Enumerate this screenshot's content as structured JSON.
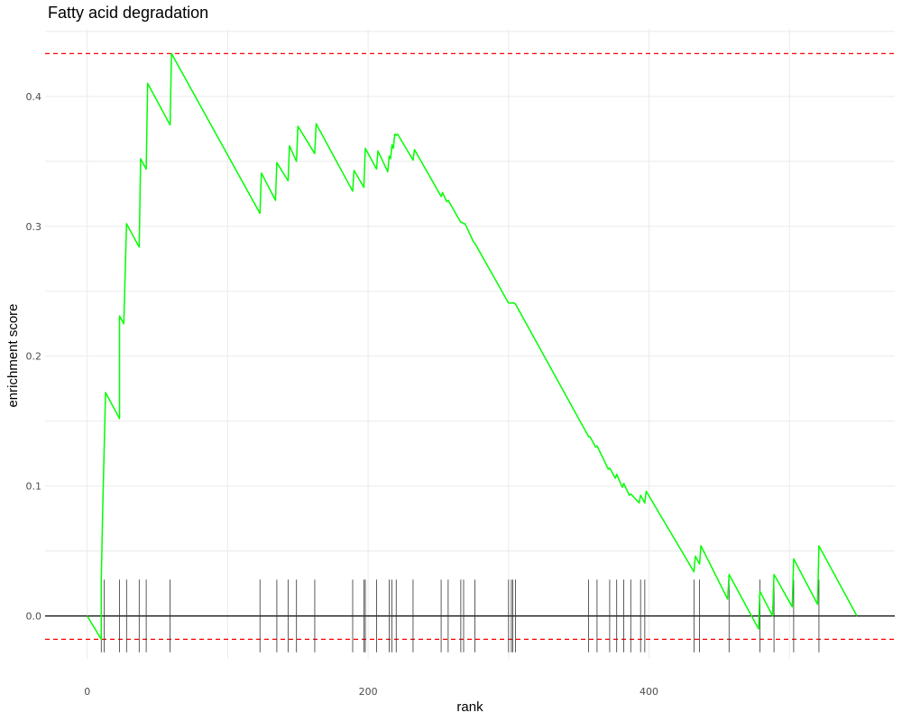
{
  "chart_data": {
    "type": "line",
    "title": "Fatty acid degradation",
    "xlabel": "rank",
    "ylabel": "enrichment score",
    "xlim": [
      -30,
      575
    ],
    "ylim": [
      -0.033,
      0.452
    ],
    "x_ticks": [
      0,
      200,
      400
    ],
    "y_ticks": [
      0.0,
      0.1,
      0.2,
      0.3,
      0.4
    ],
    "grid": true,
    "colors": {
      "line": "#00ff00",
      "threshold": "#ff0000",
      "hits": "#333333"
    },
    "max_es": 0.433,
    "min_es": -0.018,
    "series": [
      {
        "x": [
          0,
          10,
          10,
          11,
          11,
          13,
          23,
          23,
          26,
          28,
          37,
          38,
          42,
          43,
          59,
          60,
          123,
          124,
          134,
          135,
          143,
          144,
          149,
          150,
          162,
          163,
          189,
          190,
          197,
          198,
          206,
          207,
          214,
          215,
          216,
          217,
          218,
          219,
          220,
          221,
          232,
          233,
          252,
          253,
          256,
          257,
          266,
          267,
          268,
          269,
          275,
          276,
          300,
          301,
          302,
          303,
          304,
          305,
          357,
          358,
          362,
          363,
          371,
          372,
          376,
          377,
          381,
          382,
          386,
          387,
          393,
          394,
          397,
          398,
          432,
          433,
          436,
          437,
          456,
          457,
          478,
          479,
          488,
          489,
          502,
          503,
          520,
          521,
          548
        ],
        "y": [
          0.0,
          -0.018,
          0.028,
          0.08,
          0.08,
          0.172,
          0.152,
          0.231,
          0.225,
          0.302,
          0.284,
          0.352,
          0.344,
          0.41,
          0.378,
          0.433,
          0.31,
          0.341,
          0.32,
          0.349,
          0.335,
          0.362,
          0.35,
          0.377,
          0.356,
          0.379,
          0.327,
          0.343,
          0.33,
          0.36,
          0.344,
          0.358,
          0.342,
          0.354,
          0.352,
          0.363,
          0.36,
          0.371,
          0.37,
          0.371,
          0.351,
          0.359,
          0.323,
          0.326,
          0.319,
          0.32,
          0.303,
          0.303,
          0.302,
          0.302,
          0.288,
          0.287,
          0.241,
          0.241,
          0.241,
          0.241,
          0.241,
          0.24,
          0.138,
          0.138,
          0.13,
          0.131,
          0.113,
          0.114,
          0.106,
          0.109,
          0.099,
          0.102,
          0.093,
          0.094,
          0.087,
          0.093,
          0.087,
          0.096,
          0.034,
          0.046,
          0.04,
          0.054,
          0.013,
          0.032,
          -0.01,
          0.019,
          0.0,
          0.032,
          0.007,
          0.044,
          0.009,
          0.054,
          0.0
        ]
      }
    ],
    "hits": [
      10,
      12,
      23,
      28,
      37,
      42,
      59,
      123,
      135,
      143,
      149,
      162,
      189,
      197,
      198,
      206,
      215,
      217,
      220,
      232,
      252,
      257,
      266,
      268,
      276,
      300,
      302,
      303,
      305,
      357,
      363,
      372,
      377,
      382,
      387,
      394,
      397,
      432,
      436,
      457,
      479,
      489,
      503,
      521
    ]
  }
}
